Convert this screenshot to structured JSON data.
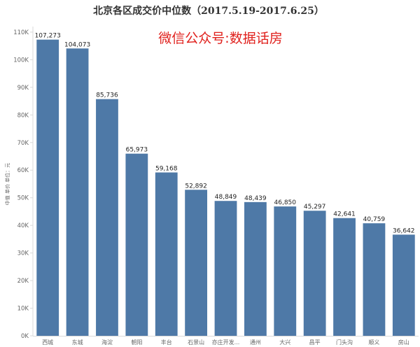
{
  "chart_data": {
    "type": "bar",
    "title": "北京各区成交价中位数（2017.5.19-2017.6.25）",
    "watermark": "微信公众号:数据话房",
    "ylabel": "中值 单价 单位：元",
    "ylim": [
      0,
      112000
    ],
    "yticks": [
      0,
      10000,
      20000,
      30000,
      40000,
      50000,
      60000,
      70000,
      80000,
      90000,
      100000,
      110000
    ],
    "ytick_labels": [
      "0K",
      "10K",
      "20K",
      "30K",
      "40K",
      "50K",
      "60K",
      "70K",
      "80K",
      "90K",
      "100K",
      "110K"
    ],
    "categories": [
      "西城",
      "东城",
      "海淀",
      "朝阳",
      "丰台",
      "石景山",
      "亦庄开发...",
      "通州",
      "大兴",
      "昌平",
      "门头沟",
      "顺义",
      "房山"
    ],
    "values": [
      107273,
      104073,
      85736,
      65973,
      59168,
      52892,
      48849,
      48439,
      46850,
      45297,
      42641,
      40759,
      36642
    ],
    "value_labels": [
      "107,273",
      "104,073",
      "85,736",
      "65,973",
      "59,168",
      "52,892",
      "48,849",
      "48,439",
      "46,850",
      "45,297",
      "42,641",
      "40,759",
      "36,642"
    ],
    "bar_color": "#4e79a7",
    "grid": false,
    "legend": "none"
  }
}
